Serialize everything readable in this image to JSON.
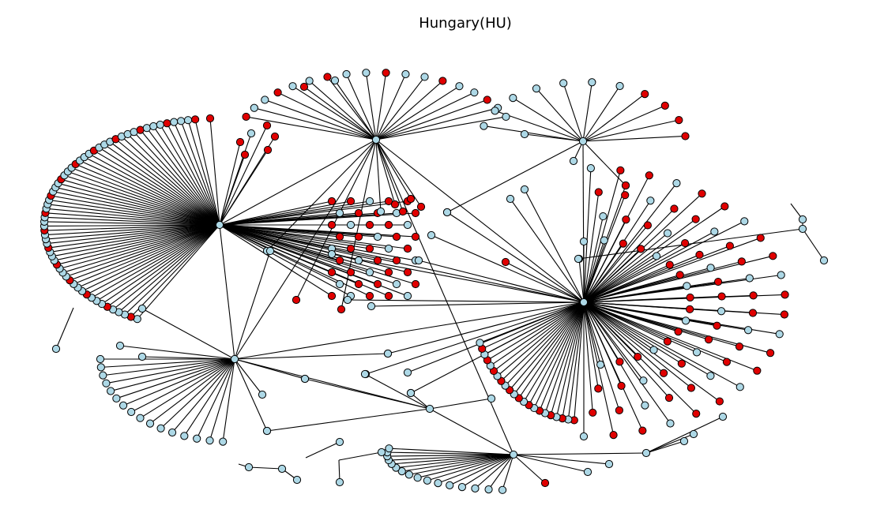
{
  "title": "Hungary(HU)",
  "colors": {
    "node_light": "#add8e6",
    "node_red": "#e00000",
    "edge": "#000000",
    "node_outline": "#000000"
  },
  "graph": {
    "hubs": [
      "A",
      "B",
      "C",
      "D",
      "E",
      "F",
      "G"
    ],
    "node_groups": [
      {
        "hub": "A",
        "light": 46,
        "red": 18
      },
      {
        "hub": "B",
        "light": 84,
        "red": 72
      },
      {
        "hub": "C",
        "light": 10,
        "red": 11
      },
      {
        "hub": "D",
        "light": 6,
        "red": 5
      },
      {
        "hub": "E",
        "light": 17,
        "red": 0
      },
      {
        "hub": "F",
        "light": 19,
        "red": 1
      },
      {
        "hub": "G",
        "light": 4,
        "red": 0
      }
    ]
  }
}
